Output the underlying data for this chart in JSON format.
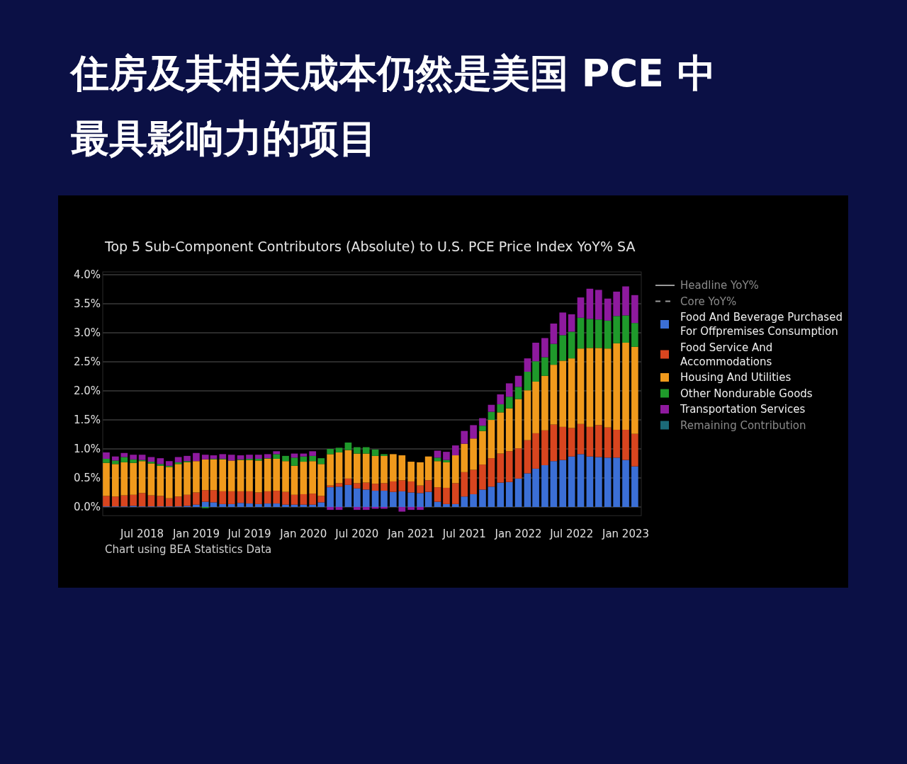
{
  "chart_data": {
    "type": "bar",
    "stacked": true,
    "title": "住房及其相关成本仍然是美国 PCE 中最具影响力的项目",
    "subtitle": "Top 5 Sub-Component Contributors (Absolute) to U.S. PCE Price Index YoY% SA",
    "annotations": [
      "Chart using BEA Statistics Data"
    ],
    "x": [
      "2018-03",
      "2018-04",
      "2018-05",
      "2018-06",
      "2018-07",
      "2018-08",
      "2018-09",
      "2018-10",
      "2018-11",
      "2018-12",
      "2019-01",
      "2019-02",
      "2019-03",
      "2019-04",
      "2019-05",
      "2019-06",
      "2019-07",
      "2019-08",
      "2019-09",
      "2019-10",
      "2019-11",
      "2019-12",
      "2020-01",
      "2020-02",
      "2020-03",
      "2020-04",
      "2020-05",
      "2020-06",
      "2020-07",
      "2020-08",
      "2020-09",
      "2020-10",
      "2020-11",
      "2020-12",
      "2021-01",
      "2021-02",
      "2021-03",
      "2021-04",
      "2021-05",
      "2021-06",
      "2021-07",
      "2021-08",
      "2021-09",
      "2021-10",
      "2021-11",
      "2021-12",
      "2022-01",
      "2022-02",
      "2022-03",
      "2022-04",
      "2022-05",
      "2022-06",
      "2022-07",
      "2022-08",
      "2022-09",
      "2022-10",
      "2022-11",
      "2022-12",
      "2023-01",
      "2023-02"
    ],
    "xlim": [
      "2018-02-17",
      "2023-02-23"
    ],
    "xticks": [
      {
        "value": "2018-07",
        "label": "Jul 2018"
      },
      {
        "value": "2019-01",
        "label": "Jan 2019"
      },
      {
        "value": "2019-07",
        "label": "Jul 2019"
      },
      {
        "value": "2020-01",
        "label": "Jan 2020"
      },
      {
        "value": "2020-07",
        "label": "Jul 2020"
      },
      {
        "value": "2021-01",
        "label": "Jan 2021"
      },
      {
        "value": "2021-07",
        "label": "Jul 2021"
      },
      {
        "value": "2022-01",
        "label": "Jan 2022"
      },
      {
        "value": "2022-07",
        "label": "Jul 2022"
      },
      {
        "value": "2023-01",
        "label": "Jan 2023"
      }
    ],
    "ylim": [
      -0.15,
      4.05
    ],
    "yticks": [
      {
        "value": 0,
        "label": "0.0%"
      },
      {
        "value": 0.5,
        "label": "0.5%"
      },
      {
        "value": 1,
        "label": "1.0%"
      },
      {
        "value": 1.5,
        "label": "1.5%"
      },
      {
        "value": 2,
        "label": "2.0%"
      },
      {
        "value": 2.5,
        "label": "2.5%"
      },
      {
        "value": 3,
        "label": "3.0%"
      },
      {
        "value": 3.5,
        "label": "3.5%"
      },
      {
        "value": 4,
        "label": "4.0%"
      }
    ],
    "grid": "y",
    "legend": "right",
    "series": [
      {
        "name": "Headline YoY%",
        "type": "line",
        "line_style": "solid",
        "color": "#9a9a9a",
        "values": [
          null,
          null,
          null,
          null,
          null,
          null,
          null,
          null,
          null,
          null,
          null,
          null,
          null,
          null,
          null,
          null,
          null,
          null,
          null,
          null,
          null,
          null,
          null,
          null,
          null,
          null,
          null,
          null,
          null,
          null,
          null,
          null,
          null,
          null,
          null,
          null,
          null,
          null,
          null,
          null,
          null,
          null,
          null,
          null,
          null,
          null,
          null,
          null,
          null,
          null,
          null,
          null,
          null,
          null,
          null,
          null,
          null,
          null,
          null,
          null
        ]
      },
      {
        "name": "Core YoY%",
        "type": "line",
        "line_style": "dashed",
        "color": "#9a9a9a",
        "values": [
          null,
          null,
          null,
          null,
          null,
          null,
          null,
          null,
          null,
          null,
          null,
          null,
          null,
          null,
          null,
          null,
          null,
          null,
          null,
          null,
          null,
          null,
          null,
          null,
          null,
          null,
          null,
          null,
          null,
          null,
          null,
          null,
          null,
          null,
          null,
          null,
          null,
          null,
          null,
          null,
          null,
          null,
          null,
          null,
          null,
          null,
          null,
          null,
          null,
          null,
          null,
          null,
          null,
          null,
          null,
          null,
          null,
          null,
          null,
          null
        ]
      },
      {
        "name": "Food And Beverage Purchased For Offpremises Consumption",
        "color": "#3b6fd6",
        "values": [
          0.01,
          0.01,
          0.01,
          0.02,
          0.01,
          0.01,
          0.01,
          0.01,
          0.01,
          0.02,
          0.04,
          0.09,
          0.08,
          0.05,
          0.05,
          0.07,
          0.06,
          0.05,
          0.06,
          0.06,
          0.04,
          0.04,
          0.04,
          0.04,
          0.08,
          0.34,
          0.35,
          0.38,
          0.32,
          0.3,
          0.28,
          0.28,
          0.26,
          0.27,
          0.25,
          0.24,
          0.26,
          0.09,
          0.05,
          0.05,
          0.18,
          0.22,
          0.3,
          0.35,
          0.42,
          0.43,
          0.49,
          0.58,
          0.66,
          0.72,
          0.79,
          0.81,
          0.87,
          0.91,
          0.87,
          0.86,
          0.85,
          0.85,
          0.81,
          0.7
        ]
      },
      {
        "name": "Food Service And Accommodations",
        "color": "#d8451f",
        "values": [
          0.18,
          0.17,
          0.19,
          0.19,
          0.23,
          0.19,
          0.18,
          0.14,
          0.17,
          0.19,
          0.21,
          0.2,
          0.21,
          0.22,
          0.22,
          0.2,
          0.21,
          0.2,
          0.21,
          0.22,
          0.22,
          0.17,
          0.18,
          0.19,
          0.11,
          0.03,
          0.06,
          0.11,
          0.09,
          0.12,
          0.12,
          0.13,
          0.18,
          0.19,
          0.19,
          0.13,
          0.2,
          0.25,
          0.28,
          0.36,
          0.42,
          0.42,
          0.43,
          0.49,
          0.5,
          0.53,
          0.52,
          0.57,
          0.61,
          0.6,
          0.63,
          0.57,
          0.49,
          0.52,
          0.51,
          0.55,
          0.52,
          0.48,
          0.52,
          0.56
        ]
      },
      {
        "name": "Housing And Utilities",
        "color": "#f09a1c",
        "values": [
          0.57,
          0.56,
          0.57,
          0.55,
          0.55,
          0.55,
          0.52,
          0.54,
          0.56,
          0.56,
          0.54,
          0.53,
          0.53,
          0.55,
          0.53,
          0.54,
          0.54,
          0.55,
          0.56,
          0.55,
          0.53,
          0.5,
          0.56,
          0.56,
          0.55,
          0.54,
          0.53,
          0.49,
          0.51,
          0.5,
          0.48,
          0.47,
          0.47,
          0.43,
          0.34,
          0.4,
          0.41,
          0.45,
          0.44,
          0.48,
          0.49,
          0.54,
          0.58,
          0.66,
          0.71,
          0.74,
          0.85,
          0.86,
          0.89,
          0.94,
          1.03,
          1.14,
          1.2,
          1.3,
          1.36,
          1.33,
          1.36,
          1.49,
          1.5,
          1.5
        ]
      },
      {
        "name": "Other Nondurable Goods",
        "color": "#1f9a2b",
        "values": [
          0.07,
          0.06,
          0.09,
          0.06,
          0.02,
          0.03,
          0.03,
          0.02,
          0.03,
          0.02,
          null,
          -0.02,
          0.01,
          0.01,
          null,
          0.01,
          0.02,
          0.03,
          0.01,
          0.08,
          0.09,
          0.14,
          0.09,
          0.09,
          0.1,
          0.09,
          0.08,
          0.13,
          0.11,
          0.11,
          0.11,
          0.03,
          null,
          0,
          0,
          0,
          0,
          0.06,
          0.04,
          0,
          0,
          0,
          0.09,
          0.14,
          0.14,
          0.2,
          0.21,
          0.32,
          0.35,
          0.32,
          0.36,
          0.44,
          0.46,
          0.53,
          0.5,
          0.49,
          0.48,
          0.47,
          0.47,
          0.41
        ]
      },
      {
        "name": "Transportation Services",
        "color": "#8e1a9e",
        "values": [
          0.11,
          0.07,
          0.07,
          0.08,
          0.09,
          0.08,
          0.1,
          0.08,
          0.09,
          0.09,
          0.14,
          0.08,
          0.06,
          0.08,
          0.1,
          0.07,
          0.07,
          0.07,
          0.07,
          0.05,
          0,
          0.07,
          0.05,
          0.08,
          0,
          -0.05,
          -0.05,
          0,
          -0.05,
          -0.05,
          -0.03,
          -0.03,
          0,
          -0.08,
          -0.05,
          -0.05,
          0,
          0.12,
          0.14,
          0.17,
          0.22,
          0.23,
          0.13,
          0.12,
          0.17,
          0.23,
          0.19,
          0.23,
          0.32,
          0.33,
          0.35,
          0.39,
          0.3,
          0.35,
          0.52,
          0.51,
          0.38,
          0.42,
          0.5,
          0.48
        ]
      },
      {
        "name": "Remaining Contribution",
        "color": "#1b6a78",
        "values": [
          null,
          null,
          null,
          null,
          null,
          null,
          null,
          null,
          null,
          null,
          null,
          null,
          null,
          null,
          null,
          null,
          null,
          null,
          null,
          null,
          null,
          null,
          null,
          null,
          null,
          null,
          null,
          null,
          null,
          null,
          null,
          null,
          null,
          null,
          null,
          null,
          null,
          null,
          null,
          null,
          null,
          null,
          null,
          null,
          null,
          null,
          null,
          null,
          null,
          null,
          null,
          null,
          null,
          null,
          null,
          null,
          null,
          null,
          null,
          null
        ]
      }
    ]
  }
}
